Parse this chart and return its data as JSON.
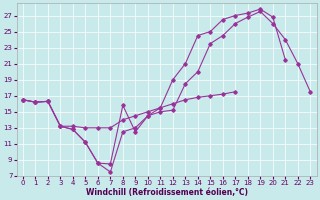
{
  "xlabel": "Windchill (Refroidissement éolien,°C)",
  "xlim": [
    -0.5,
    23.5
  ],
  "ylim": [
    7,
    28
  ],
  "yticks": [
    7,
    9,
    11,
    13,
    15,
    17,
    19,
    21,
    23,
    25,
    27
  ],
  "xticks": [
    0,
    1,
    2,
    3,
    4,
    5,
    6,
    7,
    8,
    9,
    10,
    11,
    12,
    13,
    14,
    15,
    16,
    17,
    18,
    19,
    20,
    21,
    22,
    23
  ],
  "bg_color": "#c8eaea",
  "line_color": "#993399",
  "grid_color": "#ffffff",
  "line1_x": [
    0,
    1,
    2,
    3,
    4,
    5,
    6,
    7,
    8,
    9,
    10,
    11,
    12,
    13,
    14,
    15,
    16,
    17,
    18,
    19,
    20,
    21,
    22,
    23
  ],
  "line1_y": [
    16.5,
    16.2,
    16.3,
    13.2,
    12.8,
    11.2,
    8.6,
    8.5,
    15.8,
    12.5,
    14.5,
    15.0,
    15.2,
    18.5,
    20.0,
    23.5,
    24.5,
    26.0,
    26.8,
    27.5,
    26.0,
    24.0,
    21.0,
    17.5
  ],
  "line2_x": [
    0,
    1,
    2,
    3,
    4,
    5,
    6,
    7,
    8,
    9,
    10,
    11,
    12,
    13,
    14,
    15,
    16,
    17,
    18,
    19,
    20,
    21,
    22,
    23
  ],
  "line2_y": [
    16.5,
    16.2,
    16.3,
    13.2,
    12.8,
    11.2,
    8.6,
    7.5,
    12.5,
    13.0,
    14.5,
    15.5,
    19.0,
    21.0,
    24.5,
    25.0,
    26.5,
    27.0,
    27.3,
    27.8,
    26.8,
    21.5,
    null,
    null
  ],
  "line3_x": [
    0,
    1,
    2,
    3,
    4,
    5,
    6,
    7,
    8,
    9,
    10,
    11,
    12,
    13,
    14,
    15,
    16,
    17,
    18,
    19,
    20,
    21,
    22,
    23
  ],
  "line3_y": [
    16.5,
    16.2,
    16.3,
    13.2,
    13.2,
    13.0,
    13.0,
    13.0,
    14.0,
    14.5,
    15.0,
    15.5,
    16.0,
    16.5,
    16.8,
    17.0,
    17.2,
    17.5,
    null,
    null,
    null,
    null,
    null,
    null
  ]
}
